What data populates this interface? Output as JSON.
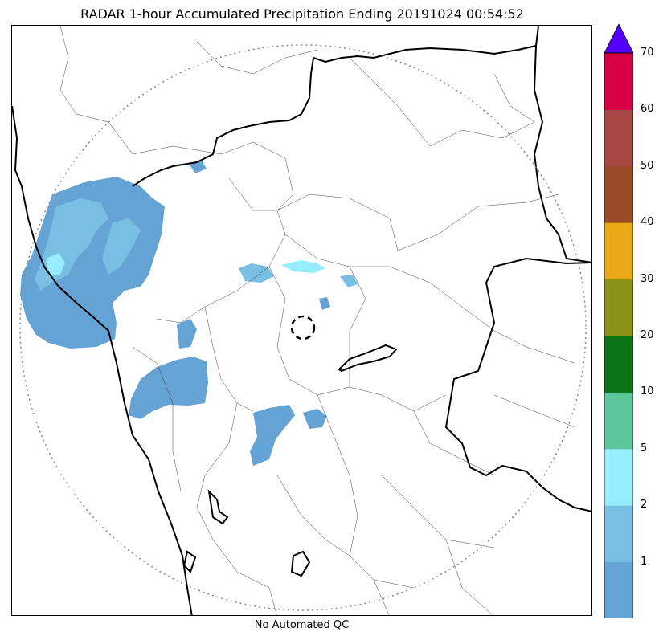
{
  "title": "RADAR 1-hour Accumulated Precipitation Ending 20191024 00:54:52",
  "footer_label": "No Automated QC",
  "colorbar": {
    "extend": "max",
    "bins": [
      {
        "lower": 0,
        "upper": 1,
        "color": "#65a3d5"
      },
      {
        "lower": 1,
        "upper": 2,
        "color": "#79bfe4"
      },
      {
        "lower": 2,
        "upper": 5,
        "color": "#95edff"
      },
      {
        "lower": 5,
        "upper": 10,
        "color": "#5dc59b"
      },
      {
        "lower": 10,
        "upper": 20,
        "color": "#0d7317"
      },
      {
        "lower": 20,
        "upper": 30,
        "color": "#8a9217"
      },
      {
        "lower": 30,
        "upper": 40,
        "color": "#e9a818"
      },
      {
        "lower": 40,
        "upper": 50,
        "color": "#9a4c2a"
      },
      {
        "lower": 50,
        "upper": 60,
        "color": "#a84845"
      },
      {
        "lower": 60,
        "upper": 70,
        "color": "#d70044"
      }
    ],
    "over_color": "#5500ff",
    "tick_labels": [
      "1",
      "2",
      "5",
      "10",
      "20",
      "30",
      "40",
      "50",
      "60",
      "70"
    ]
  },
  "map": {
    "radar_range_ring": "dotted-gray",
    "radar_site_marker": "dashed-black-circle",
    "coastline_color": "#000000",
    "boundary_color": "#444444"
  }
}
